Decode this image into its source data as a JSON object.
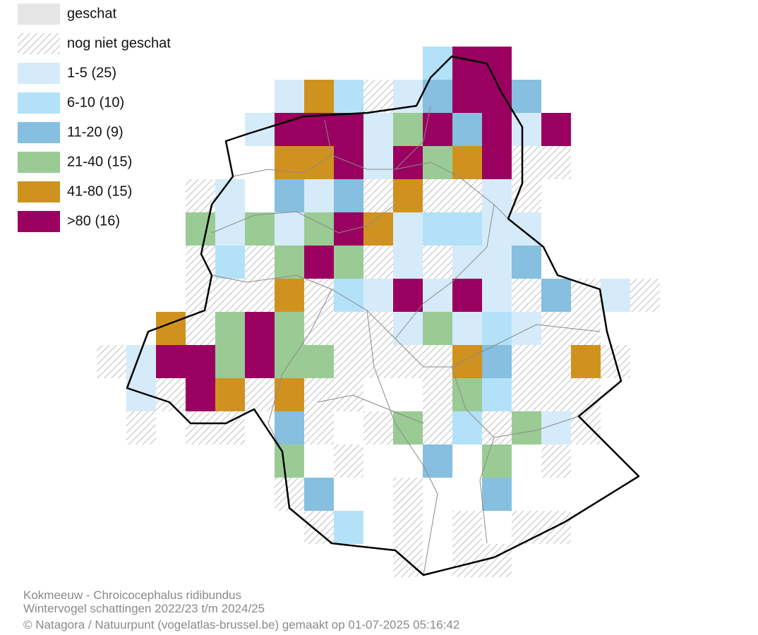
{
  "legend": [
    {
      "label": "geschat",
      "color": "#e6e6e6"
    },
    {
      "label": "nog niet geschat",
      "color": "hatch"
    },
    {
      "label": "1-5 (25)",
      "color": "#d6ebf9"
    },
    {
      "label": "6-10 (10)",
      "color": "#b3e1f8"
    },
    {
      "label": "11-20 (9)",
      "color": "#86bfdf"
    },
    {
      "label": "21-40 (15)",
      "color": "#9acb94"
    },
    {
      "label": "41-80 (15)",
      "color": "#d0921e"
    },
    {
      "label": ">80 (16)",
      "color": "#9a005f"
    }
  ],
  "footer": [
    "Kokmeeuw - Chroicocephalus ridibundus",
    "Wintervogel schattingen 2022/23 t/m 2024/25",
    "© Natagora / Natuurpunt (vogelatlas-brussel.be) gemaakt op 01-07-2025 05:16:42"
  ]
}
